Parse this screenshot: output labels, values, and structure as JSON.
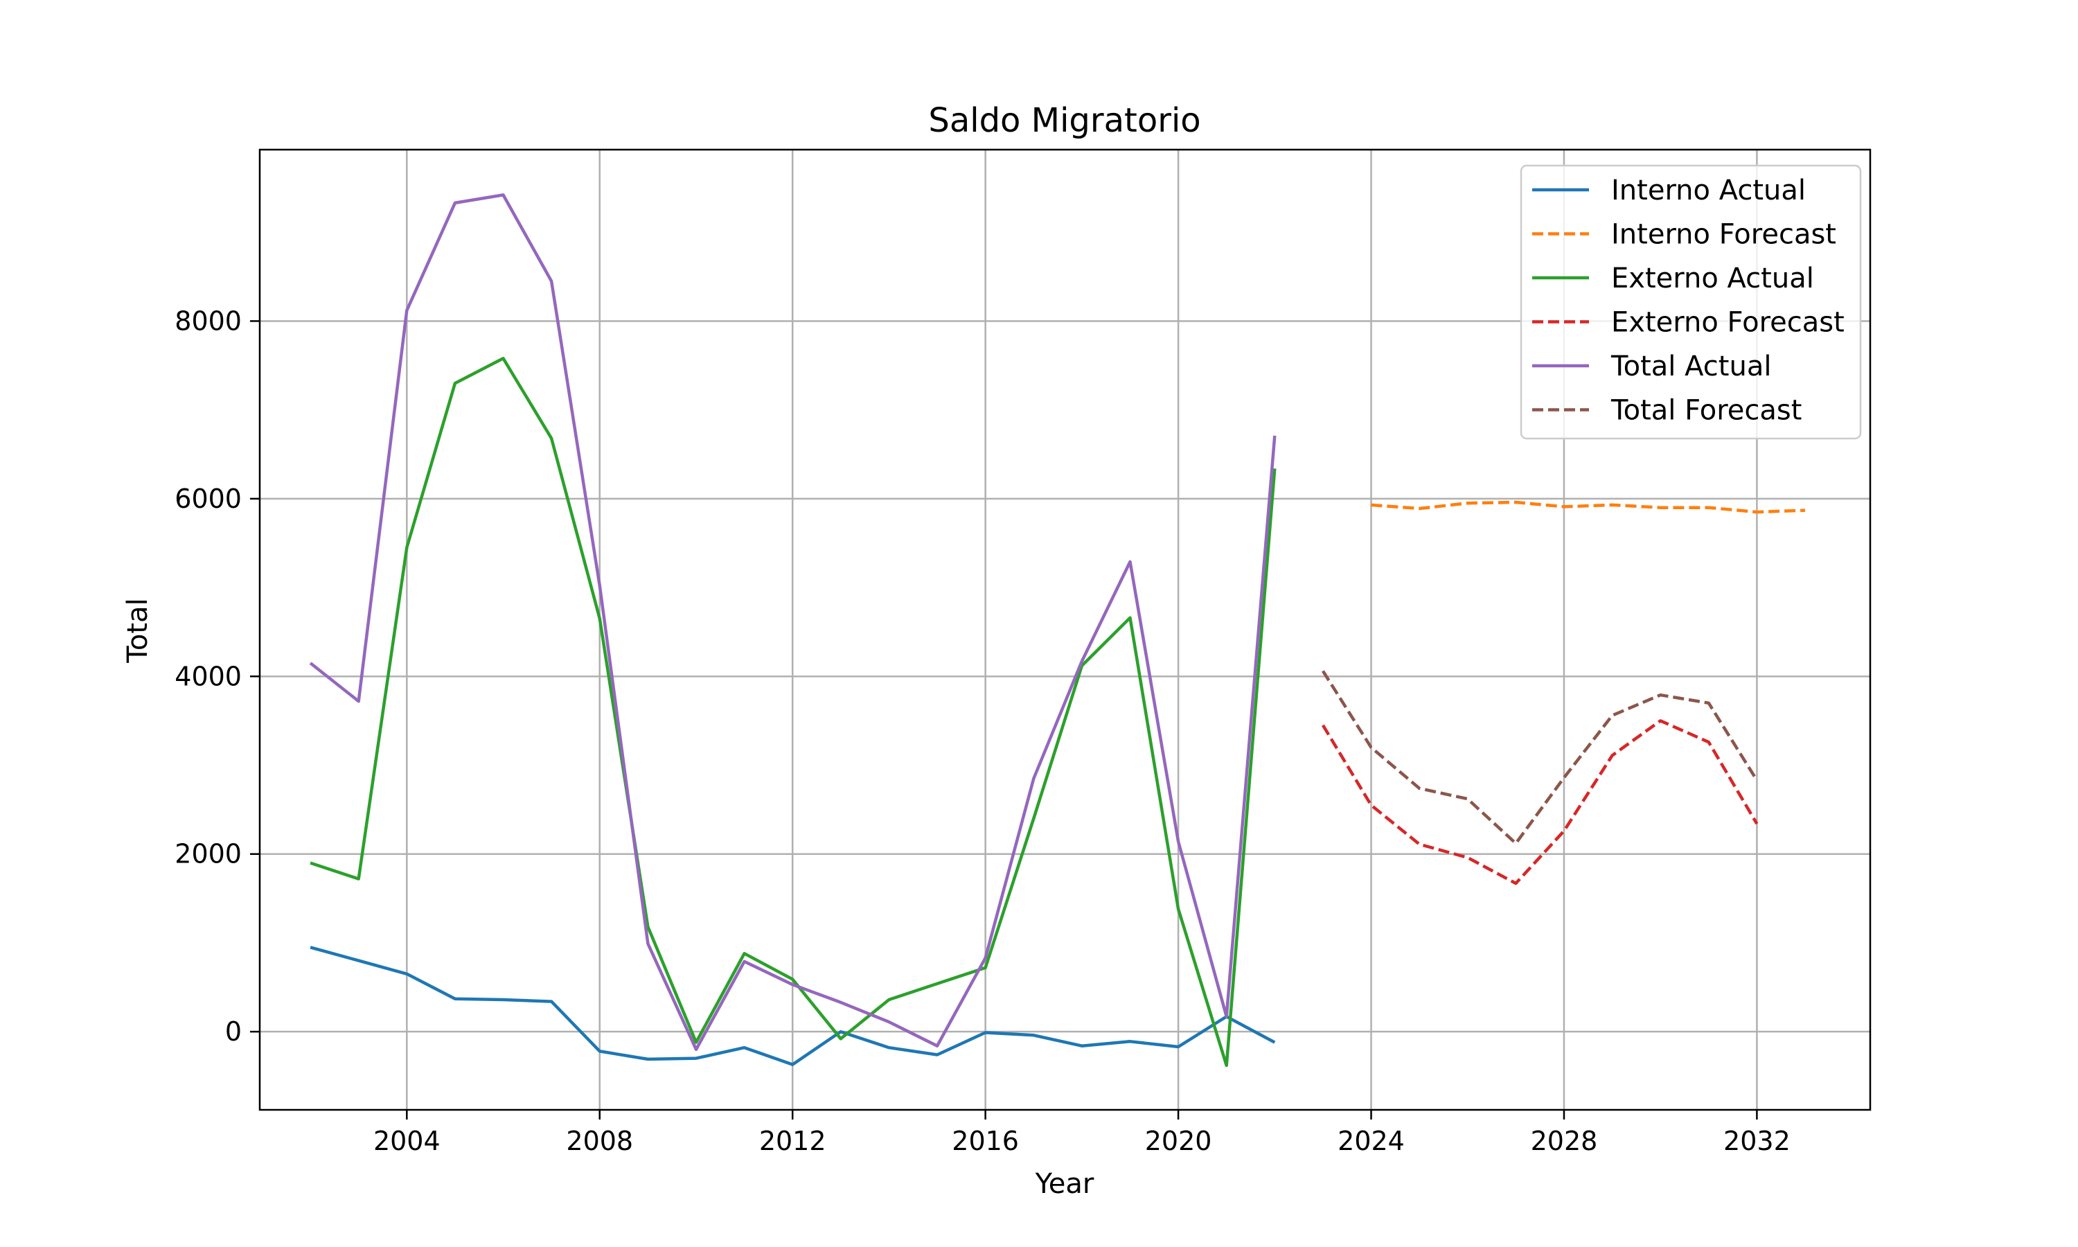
{
  "chart_data": {
    "type": "line",
    "title": "Saldo Migratorio",
    "xlabel": "Year",
    "ylabel": "Total",
    "xlim": [
      2000.95,
      2034.35
    ],
    "ylim": [
      -880,
      9930
    ],
    "xticks": [
      2004,
      2008,
      2012,
      2016,
      2020,
      2024,
      2028,
      2032
    ],
    "yticks": [
      0,
      2000,
      4000,
      6000,
      8000
    ],
    "grid": true,
    "legend_position": "top-right",
    "series": [
      {
        "name": "Interno Actual",
        "color": "#1f77b4",
        "dashed": false,
        "x": [
          2002,
          2003,
          2004,
          2005,
          2006,
          2007,
          2008,
          2009,
          2010,
          2011,
          2012,
          2013,
          2014,
          2015,
          2016,
          2017,
          2018,
          2019,
          2020,
          2021,
          2022
        ],
        "y": [
          950,
          800,
          650,
          370,
          360,
          340,
          -220,
          -310,
          -300,
          -180,
          -370,
          0,
          -180,
          -260,
          -10,
          -40,
          -160,
          -110,
          -170,
          170,
          -120
        ]
      },
      {
        "name": "Interno Forecast",
        "color": "#ff7f0e",
        "dashed": true,
        "x": [
          2024,
          2025,
          2026,
          2027,
          2028,
          2029,
          2030,
          2031,
          2032,
          2033
        ],
        "y": [
          5930,
          5890,
          5950,
          5960,
          5910,
          5930,
          5900,
          5900,
          5850,
          5870
        ]
      },
      {
        "name": "Externo Actual",
        "color": "#2ca02c",
        "dashed": false,
        "x": [
          2002,
          2003,
          2004,
          2005,
          2006,
          2007,
          2008,
          2009,
          2010,
          2011,
          2012,
          2013,
          2014,
          2015,
          2016,
          2017,
          2018,
          2019,
          2020,
          2021,
          2022
        ],
        "y": [
          1900,
          1720,
          5450,
          7300,
          7580,
          6680,
          4650,
          1180,
          -120,
          880,
          590,
          -80,
          360,
          540,
          720,
          2400,
          4120,
          4660,
          1380,
          -380,
          6340
        ]
      },
      {
        "name": "Externo Forecast",
        "color": "#d62728",
        "dashed": true,
        "x": [
          2023,
          2024,
          2025,
          2026,
          2027,
          2028,
          2029,
          2030,
          2031,
          2032
        ],
        "y": [
          3450,
          2550,
          2110,
          1960,
          1670,
          2260,
          3110,
          3500,
          3260,
          2340
        ]
      },
      {
        "name": "Total Actual",
        "color": "#9467bd",
        "dashed": false,
        "x": [
          2002,
          2003,
          2004,
          2005,
          2006,
          2007,
          2008,
          2009,
          2010,
          2011,
          2012,
          2013,
          2014,
          2015,
          2016,
          2017,
          2018,
          2019,
          2020,
          2021,
          2022
        ],
        "y": [
          4150,
          3720,
          8120,
          9330,
          9420,
          8450,
          5020,
          990,
          -200,
          790,
          530,
          330,
          110,
          -160,
          830,
          2850,
          4170,
          5290,
          2140,
          170,
          6710
        ]
      },
      {
        "name": "Total Forecast",
        "color": "#8c564b",
        "dashed": true,
        "x": [
          2023,
          2024,
          2025,
          2026,
          2027,
          2028,
          2029,
          2030,
          2031,
          2032
        ],
        "y": [
          4060,
          3200,
          2740,
          2620,
          2120,
          2860,
          3560,
          3790,
          3700,
          2830
        ]
      }
    ]
  }
}
